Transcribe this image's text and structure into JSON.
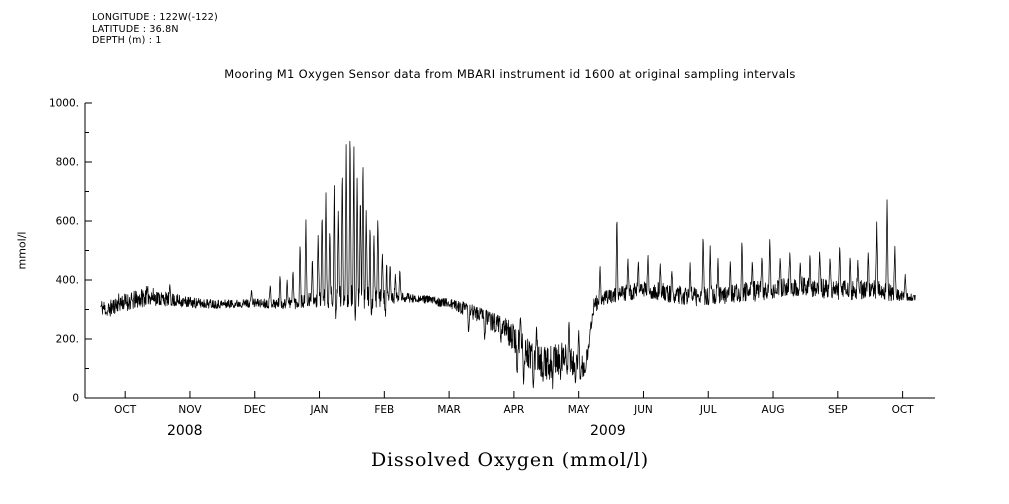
{
  "meta": {
    "longitude": "LONGITUDE : 122W(-122)",
    "latitude": "LATITUDE : 36.8N",
    "depth": "DEPTH (m) : 1"
  },
  "title": "Mooring M1 Oxygen Sensor data from MBARI instrument id 1600 at original sampling intervals",
  "bottom_title": "Dissolved Oxygen (mmol/l)",
  "chart_data": {
    "type": "line",
    "title": "Mooring M1 Oxygen Sensor data from MBARI instrument id 1600 at original sampling intervals",
    "xlabel": "Dissolved Oxygen (mmol/l)",
    "ylabel": "mmol/l",
    "ylim": [
      0,
      1000
    ],
    "xlim_months": [
      -0.62,
      12.5
    ],
    "grid": false,
    "legend": false,
    "series_color": "#000000",
    "axis_color": "#000000",
    "background_color": "#ffffff",
    "y_ticks": [
      [
        0,
        "0"
      ],
      [
        200,
        "200."
      ],
      [
        400,
        "400."
      ],
      [
        600,
        "600."
      ],
      [
        800,
        "800."
      ],
      [
        1000,
        "1000."
      ]
    ],
    "x_ticks": [
      [
        0,
        "OCT"
      ],
      [
        1,
        "NOV"
      ],
      [
        2,
        "DEC"
      ],
      [
        3,
        "JAN"
      ],
      [
        4,
        "FEB"
      ],
      [
        5,
        "MAR"
      ],
      [
        6,
        "APR"
      ],
      [
        7,
        "MAY"
      ],
      [
        8,
        "JUN"
      ],
      [
        9,
        "JUL"
      ],
      [
        10,
        "AUG"
      ],
      [
        11,
        "SEP"
      ],
      [
        12,
        "OCT"
      ]
    ],
    "year_labels": [
      [
        0.92,
        "2008"
      ],
      [
        7.45,
        "2009"
      ]
    ],
    "t_range": [
      -0.38,
      12.2
    ],
    "samples": 2600,
    "seed": 11,
    "spike_halfwidth": 0.018,
    "baseline": [
      [
        -0.38,
        308
      ],
      [
        -0.25,
        298
      ],
      [
        -0.1,
        322
      ],
      [
        0.1,
        325
      ],
      [
        0.35,
        345
      ],
      [
        0.55,
        335
      ],
      [
        0.8,
        328
      ],
      [
        1.1,
        320
      ],
      [
        1.5,
        318
      ],
      [
        2.0,
        322
      ],
      [
        2.5,
        318
      ],
      [
        3.0,
        328
      ],
      [
        3.5,
        335
      ],
      [
        4.0,
        332
      ],
      [
        4.3,
        340
      ],
      [
        4.7,
        334
      ],
      [
        5.0,
        322
      ],
      [
        5.3,
        305
      ],
      [
        5.6,
        275
      ],
      [
        5.85,
        248
      ],
      [
        6.05,
        200
      ],
      [
        6.2,
        158
      ],
      [
        6.35,
        128
      ],
      [
        6.5,
        115
      ],
      [
        6.65,
        128
      ],
      [
        6.8,
        148
      ],
      [
        6.95,
        112
      ],
      [
        7.08,
        102
      ],
      [
        7.15,
        170
      ],
      [
        7.22,
        305
      ],
      [
        7.32,
        332
      ],
      [
        7.5,
        342
      ],
      [
        7.7,
        352
      ],
      [
        7.95,
        365
      ],
      [
        8.2,
        358
      ],
      [
        8.5,
        348
      ],
      [
        8.8,
        340
      ],
      [
        9.1,
        348
      ],
      [
        9.4,
        352
      ],
      [
        9.7,
        358
      ],
      [
        10.0,
        366
      ],
      [
        10.3,
        372
      ],
      [
        10.6,
        374
      ],
      [
        10.9,
        364
      ],
      [
        11.2,
        360
      ],
      [
        11.5,
        366
      ],
      [
        11.75,
        358
      ],
      [
        11.95,
        345
      ],
      [
        12.2,
        338
      ]
    ],
    "noise": [
      [
        -0.38,
        30,
        26
      ],
      [
        0.3,
        36,
        30
      ],
      [
        0.7,
        26,
        20
      ],
      [
        1.2,
        18,
        15
      ],
      [
        1.8,
        14,
        14
      ],
      [
        2.3,
        18,
        16
      ],
      [
        2.8,
        30,
        20
      ],
      [
        3.2,
        48,
        28
      ],
      [
        3.7,
        46,
        30
      ],
      [
        4.1,
        30,
        22
      ],
      [
        4.5,
        12,
        12
      ],
      [
        5.0,
        14,
        20
      ],
      [
        5.5,
        20,
        36
      ],
      [
        6.0,
        36,
        55
      ],
      [
        6.5,
        58,
        62
      ],
      [
        7.0,
        46,
        44
      ],
      [
        7.18,
        30,
        30
      ],
      [
        7.4,
        26,
        20
      ],
      [
        7.8,
        32,
        26
      ],
      [
        8.3,
        36,
        30
      ],
      [
        9.0,
        36,
        30
      ],
      [
        10.0,
        38,
        32
      ],
      [
        11.0,
        38,
        30
      ],
      [
        11.8,
        34,
        28
      ],
      [
        12.05,
        15,
        12
      ],
      [
        12.2,
        12,
        10
      ]
    ],
    "spikes": [
      [
        0.69,
        385
      ],
      [
        1.95,
        368
      ],
      [
        2.24,
        385
      ],
      [
        2.39,
        420
      ],
      [
        2.5,
        400
      ],
      [
        2.59,
        440
      ],
      [
        2.7,
        530
      ],
      [
        2.79,
        610
      ],
      [
        2.89,
        480
      ],
      [
        2.98,
        560
      ],
      [
        3.04,
        640
      ],
      [
        3.1,
        700
      ],
      [
        3.16,
        580
      ],
      [
        3.23,
        740
      ],
      [
        3.29,
        650
      ],
      [
        3.35,
        790
      ],
      [
        3.41,
        860
      ],
      [
        3.47,
        930
      ],
      [
        3.53,
        880
      ],
      [
        3.58,
        760
      ],
      [
        3.63,
        700
      ],
      [
        3.67,
        820
      ],
      [
        3.72,
        640
      ],
      [
        3.78,
        600
      ],
      [
        3.84,
        560
      ],
      [
        3.9,
        620
      ],
      [
        3.97,
        500
      ],
      [
        4.03,
        540
      ],
      [
        4.09,
        460
      ],
      [
        4.17,
        420
      ],
      [
        4.24,
        440
      ],
      [
        6.1,
        280
      ],
      [
        6.35,
        260
      ],
      [
        6.6,
        250
      ],
      [
        6.85,
        268
      ],
      [
        7.0,
        238
      ],
      [
        7.33,
        450
      ],
      [
        7.59,
        630
      ],
      [
        7.76,
        480
      ],
      [
        7.92,
        468
      ],
      [
        8.07,
        490
      ],
      [
        8.26,
        455
      ],
      [
        8.44,
        435
      ],
      [
        8.72,
        460
      ],
      [
        8.92,
        560
      ],
      [
        9.03,
        520
      ],
      [
        9.15,
        478
      ],
      [
        9.34,
        465
      ],
      [
        9.52,
        540
      ],
      [
        9.68,
        470
      ],
      [
        9.83,
        488
      ],
      [
        9.95,
        545
      ],
      [
        10.11,
        480
      ],
      [
        10.26,
        500
      ],
      [
        10.42,
        465
      ],
      [
        10.57,
        490
      ],
      [
        10.72,
        505
      ],
      [
        10.88,
        478
      ],
      [
        11.03,
        520
      ],
      [
        11.19,
        488
      ],
      [
        11.31,
        470
      ],
      [
        11.47,
        500
      ],
      [
        11.6,
        600
      ],
      [
        11.76,
        680
      ],
      [
        11.88,
        520
      ],
      [
        12.04,
        420
      ]
    ],
    "dips": [
      [
        -0.28,
        282
      ],
      [
        3.25,
        268
      ],
      [
        3.55,
        262
      ],
      [
        3.8,
        270
      ],
      [
        4.02,
        275
      ],
      [
        5.3,
        212
      ],
      [
        5.55,
        196
      ],
      [
        5.8,
        186
      ],
      [
        6.05,
        70
      ],
      [
        6.15,
        45
      ],
      [
        6.3,
        32
      ],
      [
        6.45,
        55
      ],
      [
        6.6,
        28
      ],
      [
        6.72,
        60
      ],
      [
        6.82,
        75
      ],
      [
        6.95,
        48
      ],
      [
        7.03,
        62
      ],
      [
        7.1,
        80
      ]
    ]
  }
}
